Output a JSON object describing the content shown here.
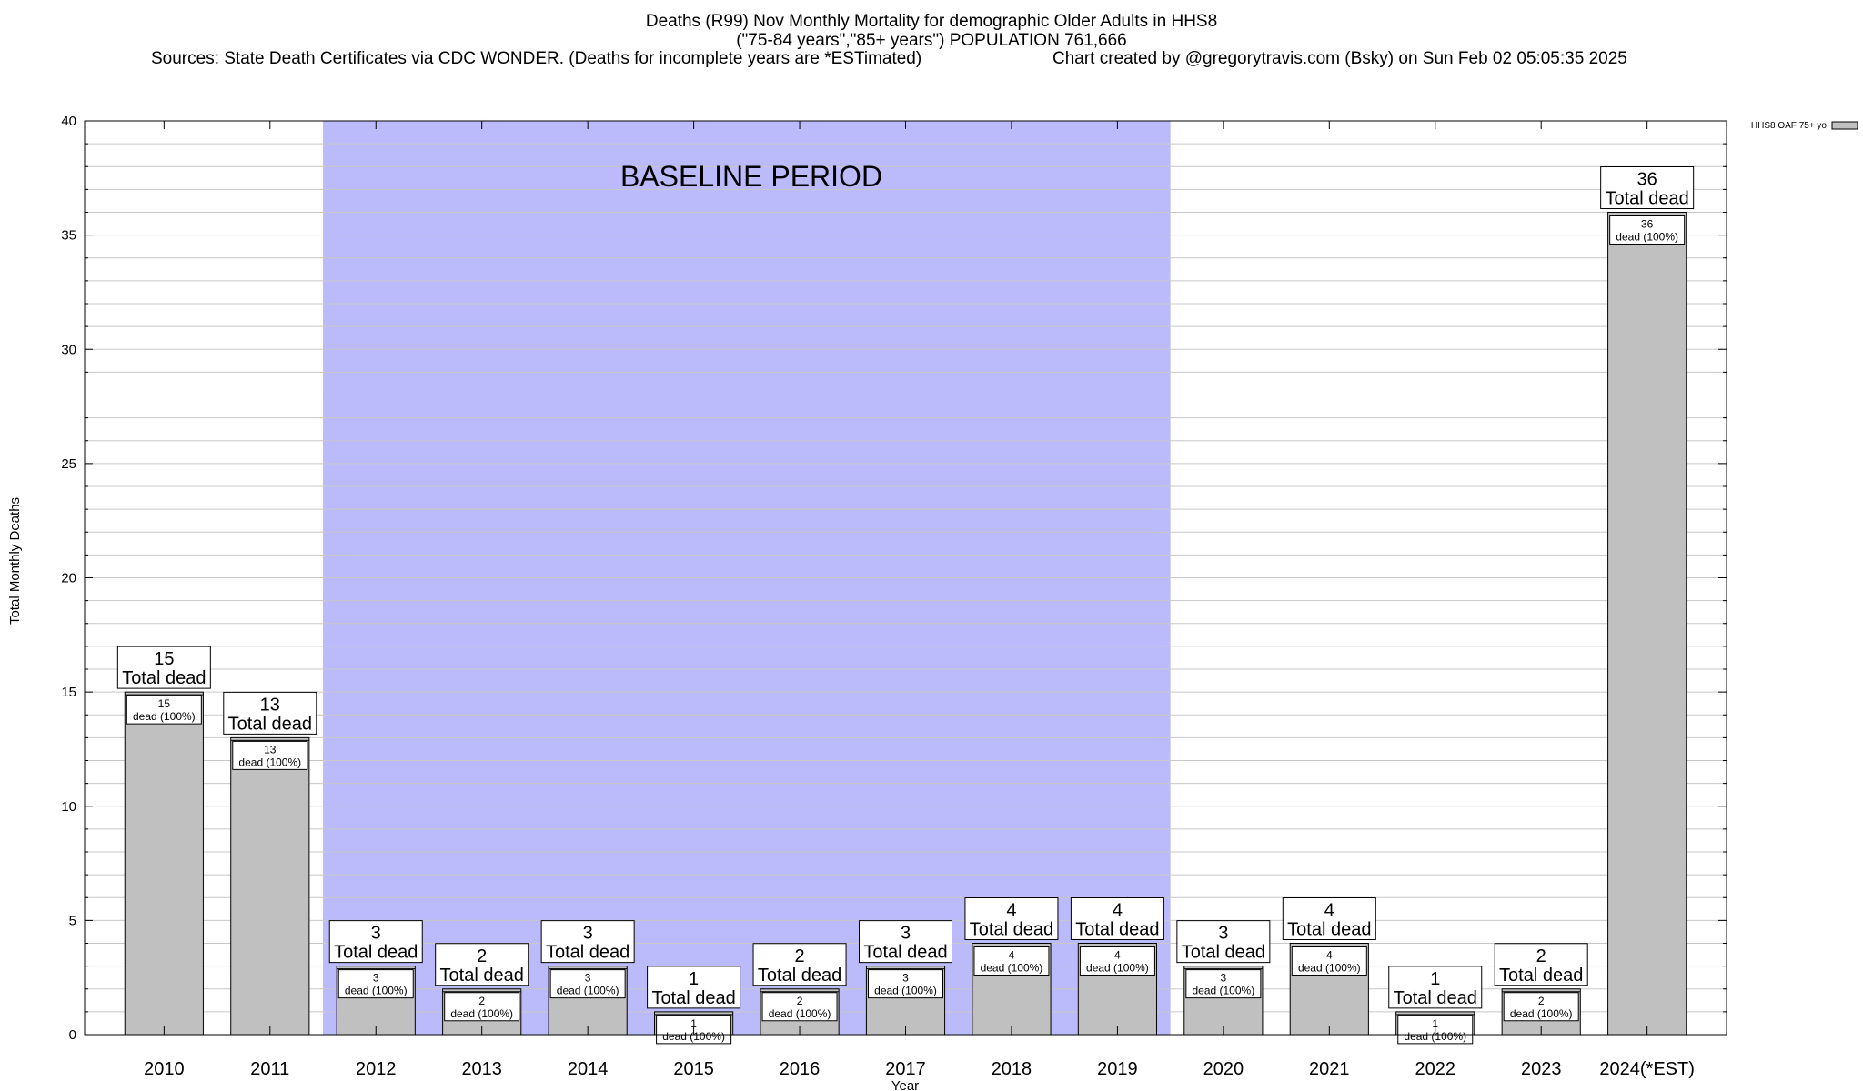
{
  "header": {
    "title_line1": "Deaths (R99) Nov Monthly Mortality for demographic Older Adults in HHS8",
    "title_line2": "(\"75-84 years\",\"85+ years\") POPULATION 761,666",
    "sources": "Sources: State Death Certificates via CDC WONDER. (Deaths for incomplete years are *ESTimated)",
    "credit": "Chart created by @gregorytravis.com (Bsky) on Sun Feb 02 05:05:35 2025"
  },
  "chart_data": {
    "type": "bar",
    "xlabel": "Year",
    "ylabel": "Total Monthly Deaths",
    "ylim": [
      0,
      40
    ],
    "y_major_ticks": [
      0,
      5,
      10,
      15,
      20,
      25,
      30,
      35,
      40
    ],
    "y_minor_step": 1,
    "grid": true,
    "legend": {
      "position": "top-right",
      "entries": [
        "HHS8 OAF 75+ yo"
      ]
    },
    "categories": [
      "2010",
      "2011",
      "2012",
      "2013",
      "2014",
      "2015",
      "2016",
      "2017",
      "2018",
      "2019",
      "2020",
      "2021",
      "2022",
      "2023",
      "2024(*EST)"
    ],
    "series": [
      {
        "name": "HHS8 OAF 75+ yo",
        "values": [
          15,
          13,
          3,
          2,
          3,
          1,
          2,
          3,
          4,
          4,
          3,
          4,
          1,
          2,
          36
        ]
      }
    ],
    "total_label": "Total dead",
    "inner_label": "dead (100%)",
    "baseline": {
      "label": "BASELINE PERIOD",
      "from": "2012",
      "to": "2019"
    },
    "colors": {
      "bar_fill": "#c0c0c0",
      "bar_stroke": "#000000",
      "baseline_fill": "#bbbbfb",
      "grid": "#c8c8c8"
    }
  }
}
